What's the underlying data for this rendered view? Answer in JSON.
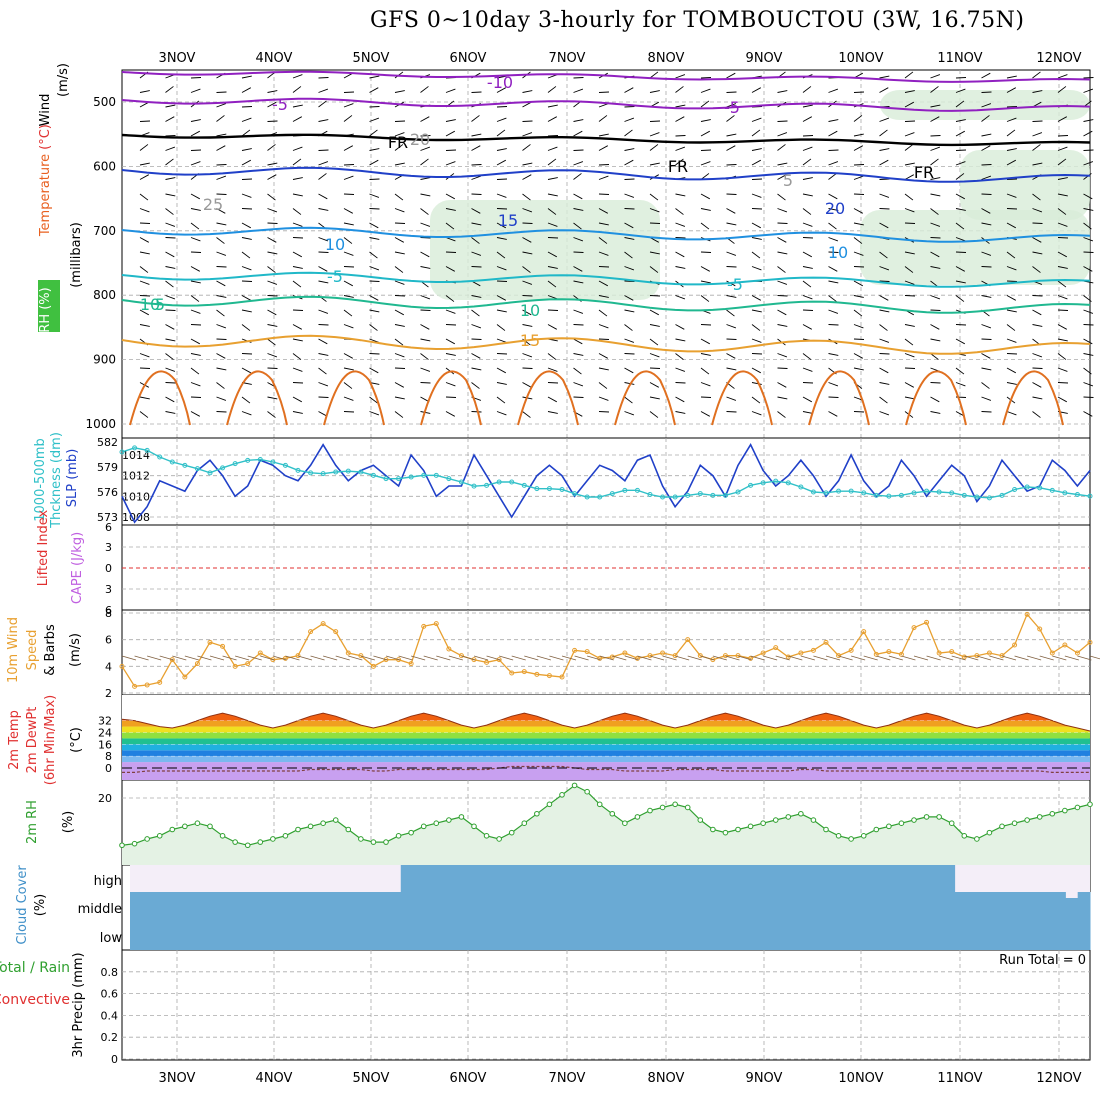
{
  "title": "GFS 0~10day 3-hourly for TOMBOUCTOU (3W, 16.75N)",
  "x_tick_labels": [
    "3NOV",
    "4NOV",
    "5NOV",
    "6NOV",
    "7NOV",
    "8NOV",
    "9NOV",
    "10NOV",
    "11NOV",
    "12NOV"
  ],
  "colors": {
    "grid": "#aaaaaa",
    "slp": "#2040c8",
    "thickness": "#30c0c8",
    "wind": "#e8a030",
    "rh": "#30a030",
    "cloud": "#6aaad4",
    "cloud_bg": "#f4eef8"
  },
  "panel_labels": {
    "upper": [
      {
        "text": "Wind",
        "color": "#000000"
      },
      {
        "text": "(m/s)",
        "color": "#000000"
      },
      {
        "text": "Temperature",
        "color": "#e86020"
      },
      {
        "text": "(°C)",
        "color": "#e03030"
      },
      {
        "text": "RH (%)",
        "color": "#30a030"
      },
      {
        "text": "(millibars)",
        "color": "#000000"
      }
    ],
    "slp": [
      {
        "text": "1000-500mb",
        "color": "#30c0c8"
      },
      {
        "text": "Thckness (dm)",
        "color": "#30c0c8"
      },
      {
        "text": "SLP (mb)",
        "color": "#2040c8"
      }
    ],
    "cape": [
      {
        "text": "Lifted Index",
        "color": "#e03030"
      },
      {
        "text": "CAPE (J/kg)",
        "color": "#c060e0"
      }
    ],
    "wind": [
      {
        "text": "10m Wind",
        "color": "#e8a030"
      },
      {
        "text": "Speed",
        "color": "#e8a030"
      },
      {
        "text": "& Barbs",
        "color": "#000000"
      },
      {
        "text": "(m/s)",
        "color": "#000000"
      }
    ],
    "temp": [
      {
        "text": "2m Temp",
        "color": "#e03030"
      },
      {
        "text": "2m DewPt",
        "color": "#e03030"
      },
      {
        "text": "(6hr Min/Max)",
        "color": "#e03030"
      },
      {
        "text": "(°C)",
        "color": "#000000"
      }
    ],
    "rh": [
      {
        "text": "2m RH",
        "color": "#30a030"
      },
      {
        "text": "(%)",
        "color": "#000000"
      }
    ],
    "cloud": [
      {
        "text": "Cloud Cover",
        "color": "#4090c8"
      },
      {
        "text": "(%)",
        "color": "#000000"
      }
    ],
    "precip": [
      {
        "text": "Total / Rain",
        "color": "#30a030"
      },
      {
        "text": "Convective",
        "color": "#e03030"
      },
      {
        "text": "3hr Precip (mm)",
        "color": "#000000"
      }
    ]
  },
  "chart_data": [
    {
      "panel": "upper_air",
      "type": "contour",
      "y_ticks": [
        "500",
        "600",
        "700",
        "800",
        "900",
        "1000"
      ],
      "isotherm_labels": [
        "-10",
        "-5",
        "-5",
        "FR",
        "FR",
        "FR",
        "10",
        "10",
        "-5",
        "-5",
        "10",
        "10",
        "15",
        "15",
        "20",
        "20",
        "25",
        "5",
        "5"
      ]
    },
    {
      "panel": "slp_thickness",
      "type": "line",
      "y_ticks_left": [
        "582",
        "579",
        "576",
        "573"
      ],
      "y_ticks_right": [
        "1014",
        "1012",
        "1010",
        "1008"
      ],
      "series": [
        {
          "name": "SLP (mb)",
          "values": [
            1010,
            1007.5,
            1009,
            1011.5,
            1011,
            1010.5,
            1012.5,
            1013.5,
            1012,
            1010,
            1011,
            1013.5,
            1013,
            1012,
            1011.5,
            1013,
            1015,
            1013,
            1011.5,
            1012.5,
            1013,
            1012,
            1011,
            1014,
            1012.5,
            1010,
            1011,
            1011,
            1014,
            1012,
            1010,
            1008,
            1010,
            1012,
            1013,
            1012,
            1010,
            1011.5,
            1013,
            1012.5,
            1011.5,
            1013.5,
            1014,
            1011,
            1009,
            1010.5,
            1013,
            1012,
            1010,
            1013,
            1015,
            1012.5,
            1011,
            1012,
            1013.5,
            1012,
            1010,
            1011.5,
            1014,
            1011.5,
            1010,
            1011,
            1013.5,
            1012,
            1010,
            1011.5,
            1013,
            1012,
            1009.5,
            1011,
            1013.5,
            1012,
            1010.5,
            1011,
            1013.5,
            1012.5,
            1011,
            1012.5
          ]
        },
        {
          "name": "1000-500mb Thckness (dm)",
          "values": [
            580.8,
            581.3,
            581.0,
            580.2,
            579.6,
            579.2,
            578.8,
            578.3,
            578.9,
            579.4,
            579.8,
            579.9,
            579.6,
            579.2,
            578.6,
            578.3,
            578.2,
            578.4,
            578.5,
            578.4,
            578.0,
            577.6,
            577.6,
            577.8,
            578.0,
            578.0,
            577.6,
            577.2,
            576.7,
            576.8,
            577.2,
            577.2,
            576.8,
            576.4,
            576.4,
            576.3,
            575.8,
            575.4,
            575.4,
            575.8,
            576.2,
            576.2,
            575.7,
            575.4,
            575.4,
            575.6,
            575.8,
            575.6,
            575.6,
            576.0,
            576.8,
            577.1,
            577.3,
            577.1,
            576.6,
            576.0,
            575.9,
            576.1,
            576.1,
            575.9,
            575.6,
            575.5,
            575.6,
            575.9,
            576.1,
            576.0,
            575.9,
            575.6,
            575.4,
            575.3,
            575.6,
            576.3,
            576.6,
            576.5,
            576.2,
            575.9,
            575.7,
            575.5
          ]
        }
      ]
    },
    {
      "panel": "cape_li",
      "type": "line",
      "y_ticks": [
        "6",
        "3",
        "0",
        "3",
        "6"
      ]
    },
    {
      "panel": "wind_10m",
      "type": "line",
      "y_ticks": [
        "2",
        "4",
        "6",
        "8"
      ],
      "series": [
        {
          "name": "10m Wind Speed (m/s)",
          "values": [
            4.0,
            2.5,
            2.6,
            2.8,
            4.5,
            3.2,
            4.2,
            5.8,
            5.5,
            4.0,
            4.2,
            5.0,
            4.5,
            4.6,
            4.8,
            6.6,
            7.2,
            6.6,
            5.0,
            4.8,
            4.0,
            4.5,
            4.5,
            4.2,
            7.0,
            7.2,
            5.3,
            4.8,
            4.5,
            4.3,
            4.5,
            3.5,
            3.6,
            3.4,
            3.3,
            3.2,
            5.2,
            5.1,
            4.6,
            4.7,
            5.0,
            4.6,
            4.8,
            5.0,
            4.8,
            6.0,
            4.8,
            4.5,
            4.8,
            4.8,
            4.6,
            5.0,
            5.4,
            4.7,
            5.0,
            5.2,
            5.8,
            4.8,
            5.2,
            6.6,
            4.9,
            5.1,
            4.9,
            6.9,
            7.3,
            5.0,
            5.1,
            4.7,
            4.8,
            5.0,
            4.8,
            5.6,
            7.9,
            6.8,
            5.0,
            5.6,
            5.0,
            5.8
          ]
        }
      ]
    },
    {
      "panel": "temp_2m",
      "type": "area",
      "y_ticks": [
        "0",
        "8",
        "16",
        "24",
        "32"
      ],
      "series": [
        {
          "name": "2m Temp (°C)",
          "values": [
            33,
            32,
            30,
            28,
            27,
            29,
            32,
            35,
            37,
            35,
            32,
            29,
            27,
            29,
            32,
            35,
            37,
            35,
            32,
            29,
            27,
            29,
            32,
            35,
            37,
            35,
            32,
            29,
            27,
            29,
            32,
            35,
            37,
            35,
            32,
            29,
            27,
            29,
            32,
            35,
            37,
            35,
            32,
            29,
            27,
            29,
            32,
            35,
            37,
            35,
            32,
            29,
            27,
            29,
            32,
            35,
            37,
            35,
            32,
            29,
            27,
            29,
            32,
            35,
            37,
            35,
            32,
            29,
            27,
            29,
            32,
            35,
            37,
            35,
            32,
            29,
            27,
            25
          ]
        },
        {
          "name": "2m DewPt (°C)",
          "values": [
            -3,
            -3,
            -2,
            -2,
            -2,
            -2,
            -2,
            -2,
            -2,
            -2,
            -2,
            -2,
            -2,
            -2,
            -2,
            -1,
            -1,
            -1,
            -1,
            -1,
            -2,
            -2,
            -1,
            -1,
            -1,
            -1,
            -1,
            -1,
            -1,
            -1,
            0,
            1,
            1,
            1,
            1,
            1,
            0,
            -1,
            -1,
            -1,
            -2,
            -2,
            -2,
            -2,
            -1,
            -1,
            -1,
            -1,
            -2,
            -2,
            -2,
            -2,
            -2,
            -2,
            -1,
            -1,
            -2,
            -2,
            -2,
            -2,
            -2,
            -2,
            -2,
            -2,
            -2,
            -2,
            -2,
            -2,
            -2,
            -2,
            -2,
            -2,
            -2,
            -2,
            -3,
            -3,
            -3,
            -3
          ]
        }
      ]
    },
    {
      "panel": "rh_2m",
      "type": "line",
      "y_ticks": [
        "20"
      ],
      "series": [
        {
          "name": "2m RH (%)",
          "values": [
            5,
            5.5,
            7,
            8,
            10,
            11,
            12,
            11,
            8,
            6,
            5,
            6,
            7,
            8,
            10,
            11,
            12,
            13,
            10,
            7,
            6,
            6,
            8,
            9,
            11,
            12,
            13,
            14,
            11,
            8,
            7,
            9,
            12,
            15,
            18,
            21,
            24,
            22,
            18,
            15,
            12,
            14,
            16,
            17,
            18,
            17,
            13,
            10,
            9,
            10,
            11,
            12,
            13,
            14,
            15,
            13,
            10,
            8,
            7,
            8,
            10,
            11,
            12,
            13,
            14,
            14,
            12,
            8,
            7,
            9,
            11,
            12,
            13,
            14,
            15,
            16,
            17,
            18
          ]
        }
      ]
    },
    {
      "panel": "cloud_cover",
      "type": "bar",
      "y_ticks": [
        "high",
        "middle",
        "low"
      ],
      "series": [
        {
          "name": "high",
          "values": [
            0,
            0,
            0,
            0,
            0,
            0,
            0,
            0,
            0,
            0,
            0,
            0,
            0,
            0,
            0,
            0,
            0,
            0,
            0,
            0,
            0,
            0,
            100,
            100,
            100,
            100,
            100,
            100,
            100,
            100,
            100,
            100,
            100,
            100,
            100,
            100,
            100,
            100,
            100,
            100,
            100,
            100,
            100,
            100,
            100,
            100,
            100,
            100,
            100,
            100,
            100,
            100,
            100,
            100,
            100,
            100,
            100,
            100,
            100,
            100,
            100,
            100,
            100,
            100,
            100,
            100,
            100,
            0,
            0,
            0,
            0,
            0,
            0,
            0,
            0,
            0,
            0,
            0
          ]
        },
        {
          "name": "middle",
          "values": [
            100,
            100,
            100,
            100,
            100,
            100,
            100,
            100,
            100,
            100,
            100,
            100,
            100,
            100,
            100,
            100,
            100,
            100,
            100,
            100,
            100,
            100,
            100,
            100,
            100,
            100,
            100,
            100,
            100,
            100,
            100,
            100,
            100,
            100,
            100,
            100,
            100,
            100,
            100,
            100,
            100,
            100,
            100,
            100,
            100,
            100,
            100,
            100,
            100,
            100,
            100,
            100,
            100,
            100,
            100,
            100,
            100,
            100,
            100,
            100,
            100,
            100,
            100,
            100,
            100,
            100,
            100,
            100,
            100,
            100,
            100,
            100,
            100,
            100,
            100,
            100,
            80,
            100
          ]
        },
        {
          "name": "low",
          "values": [
            100,
            100,
            100,
            100,
            100,
            100,
            100,
            100,
            100,
            100,
            100,
            100,
            100,
            100,
            100,
            100,
            100,
            100,
            100,
            100,
            100,
            100,
            100,
            100,
            100,
            100,
            100,
            100,
            100,
            100,
            100,
            100,
            100,
            100,
            100,
            100,
            100,
            100,
            100,
            100,
            100,
            100,
            100,
            100,
            100,
            100,
            100,
            100,
            100,
            100,
            100,
            100,
            100,
            100,
            100,
            100,
            100,
            100,
            100,
            100,
            100,
            100,
            100,
            100,
            100,
            100,
            100,
            100,
            100,
            100,
            100,
            100,
            100,
            100,
            100,
            100,
            100,
            100
          ]
        }
      ]
    },
    {
      "panel": "precip_3hr",
      "type": "bar",
      "y_ticks": [
        "0",
        "0.2",
        "0.4",
        "0.6",
        "0.8"
      ],
      "annotation": "Run Total = 0",
      "series": [
        {
          "name": "Total / Rain",
          "values": []
        },
        {
          "name": "Convective",
          "values": []
        }
      ]
    }
  ]
}
